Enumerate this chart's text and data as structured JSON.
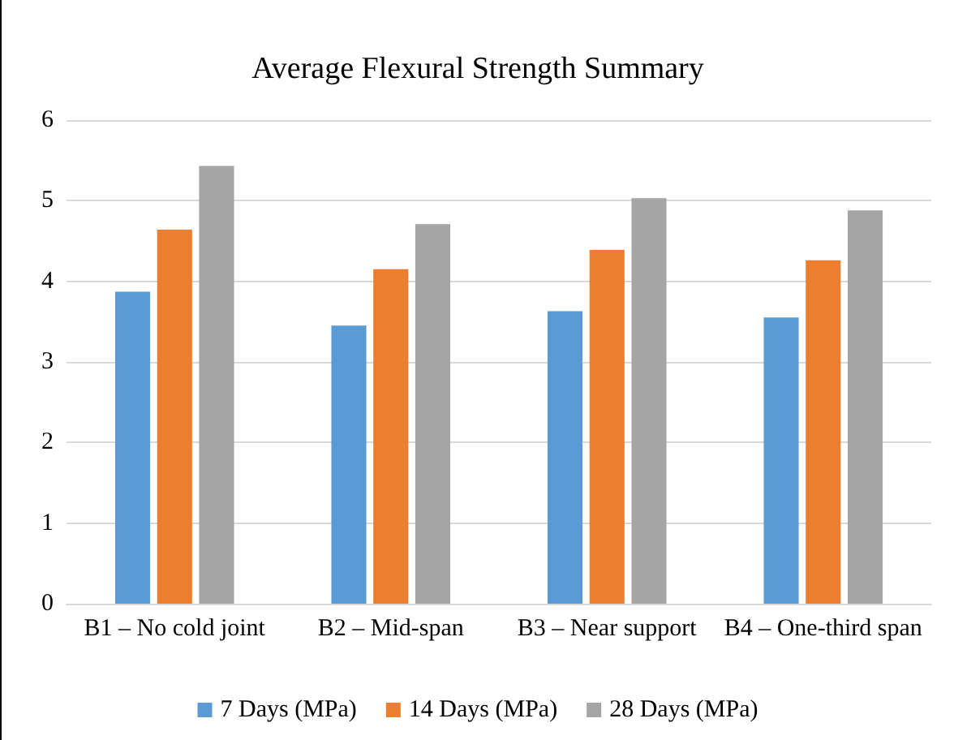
{
  "chart_data": {
    "type": "bar",
    "title": "Average Flexural Strength Summary",
    "categories": [
      "B1 – No cold joint",
      "B2 – Mid-span",
      "B3 – Near support",
      "B4 – One-third span"
    ],
    "series": [
      {
        "name": "7 Days (MPa)",
        "color": "#5b9bd5",
        "values": [
          3.87,
          3.45,
          3.63,
          3.55
        ]
      },
      {
        "name": "14 Days (MPa)",
        "color": "#ed7d31",
        "values": [
          4.64,
          4.15,
          4.39,
          4.26
        ]
      },
      {
        "name": "28 Days (MPa)",
        "color": "#a5a5a5",
        "values": [
          5.43,
          4.71,
          5.03,
          4.88
        ]
      }
    ],
    "ylim": [
      0,
      6
    ],
    "yticks": [
      0,
      1,
      2,
      3,
      4,
      5,
      6
    ],
    "grid": "y",
    "legend": "bottom"
  }
}
